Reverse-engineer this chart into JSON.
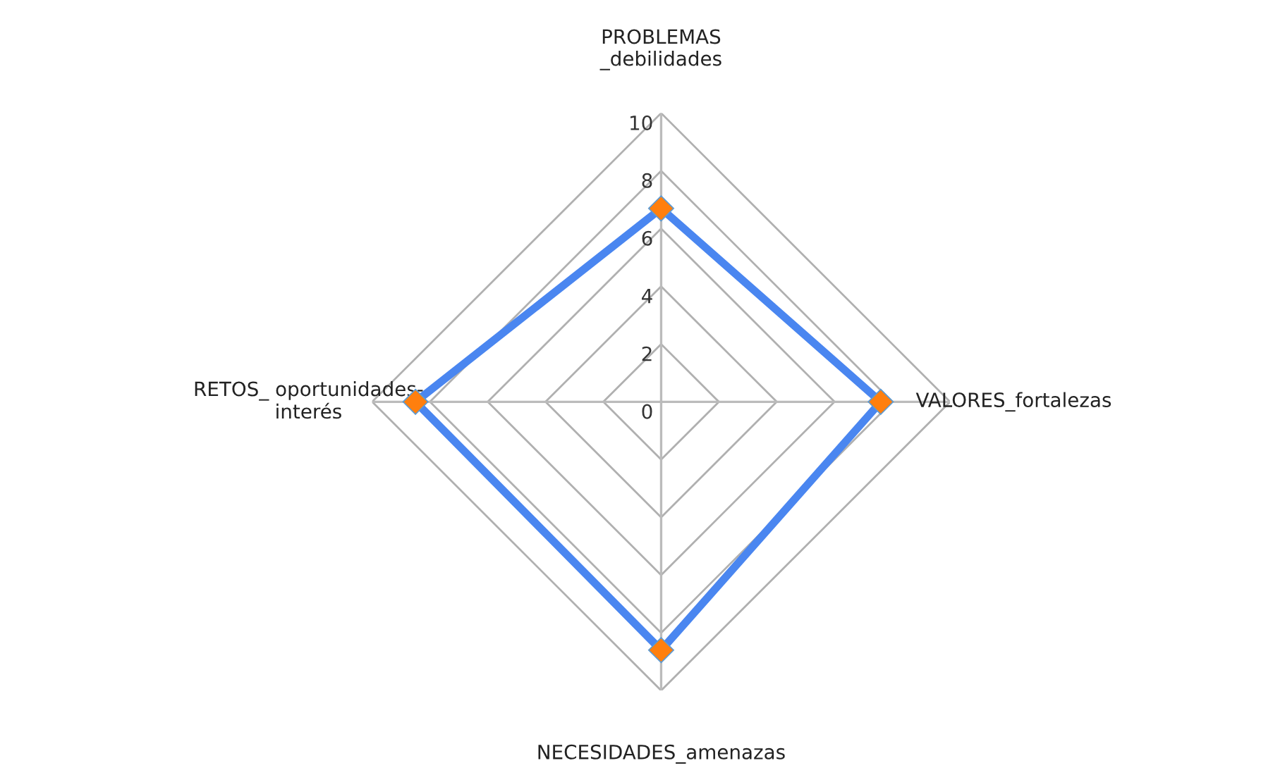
{
  "chart_data": {
    "type": "radar",
    "categories": [
      "PROBLEMAS\n_debilidades",
      "VALORES_fortalezas",
      "NECESIDADES_amenazas",
      "RETOS_ oportunidades-\ninterés"
    ],
    "series": [
      {
        "color": "#4a86f0",
        "values": [
          6.7,
          7.6,
          8.6,
          8.5
        ]
      }
    ],
    "ylim": [
      0,
      10
    ],
    "yticks": [
      0,
      2,
      4,
      6,
      8,
      10
    ],
    "marker": "diamond",
    "grid": true
  }
}
